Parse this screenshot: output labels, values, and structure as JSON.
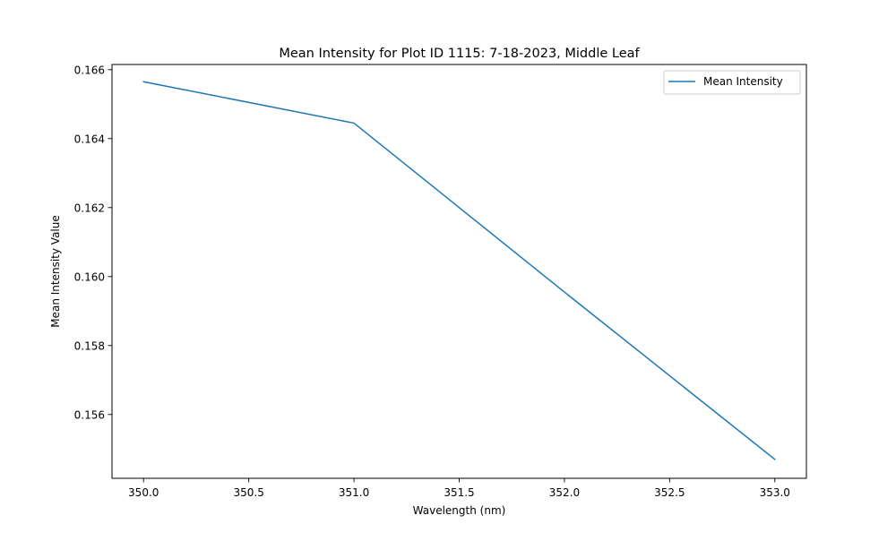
{
  "chart_data": {
    "type": "line",
    "title": "Mean Intensity for Plot ID 1115: 7-18-2023, Middle Leaf",
    "xlabel": "Wavelength (nm)",
    "ylabel": "Mean Intensity Value",
    "xlim": [
      349.85,
      353.15
    ],
    "ylim": [
      0.15415,
      0.16615
    ],
    "x_ticks": [
      350.0,
      350.5,
      351.0,
      351.5,
      352.0,
      352.5,
      353.0
    ],
    "x_tick_labels": [
      "350.0",
      "350.5",
      "351.0",
      "351.5",
      "352.0",
      "352.5",
      "353.0"
    ],
    "y_ticks": [
      0.156,
      0.158,
      0.16,
      0.162,
      0.164,
      0.166
    ],
    "y_tick_labels": [
      "0.156",
      "0.158",
      "0.160",
      "0.162",
      "0.164",
      "0.166"
    ],
    "grid": false,
    "legend": "top-right",
    "series": [
      {
        "name": "Mean Intensity",
        "color": "#1f77b4",
        "x": [
          350,
          351,
          352,
          353
        ],
        "y": [
          0.16565,
          0.16445,
          0.15955,
          0.1547
        ]
      }
    ]
  }
}
